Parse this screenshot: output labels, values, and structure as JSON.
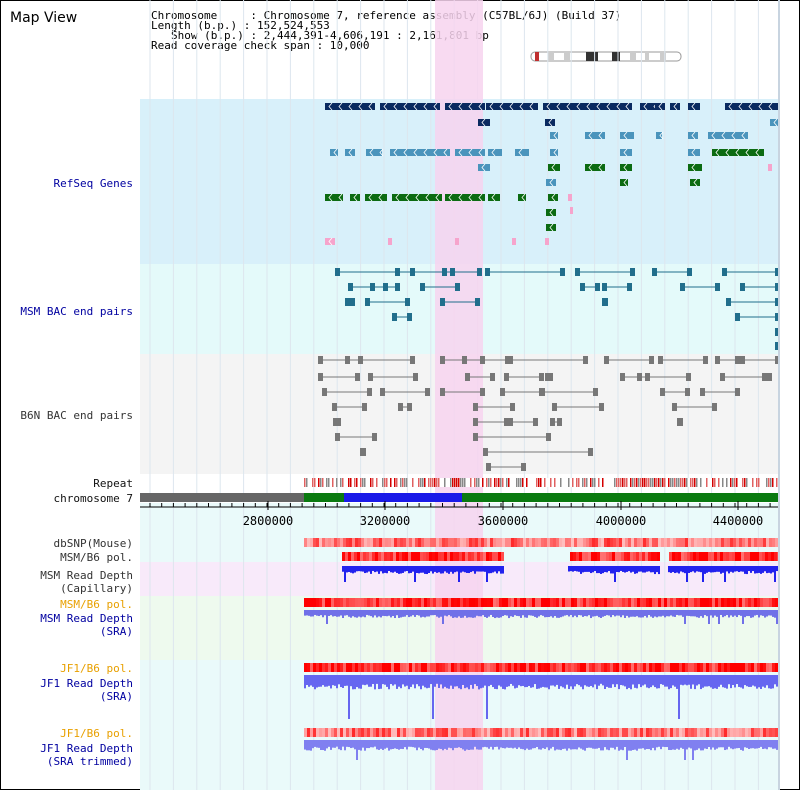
{
  "title": "Map View",
  "info": {
    "chromosome": "Chromosome     : Chromosome 7, reference assembly (C57BL/6J) (Build 37)",
    "length": "Length (b.p.) : 152,524,553",
    "show": "Show (b.p.) : 2,444,391-4,606,191 : 2,161,801 bp",
    "coverage": "Read coverage check span : 10,000"
  },
  "tracks": {
    "refseq": "RefSeq Genes",
    "msm_bac": "MSM BAC end pairs",
    "b6n_bac": "B6N BAC end pairs",
    "repeat": "Repeat",
    "chromosome": "chromosome 7",
    "dbsnp": "dbSNP(Mouse)",
    "msm_b6_pol_1": "MSM/B6 pol.",
    "msm_depth_cap_1": "MSM Read Depth",
    "msm_depth_cap_2": "(Capillary)",
    "msm_b6_pol_2": "MSM/B6 pol.",
    "msm_depth_sra_1": "MSM Read Depth",
    "msm_depth_sra_2": "(SRA)",
    "jf1_b6_pol_1": "JF1/B6 pol.",
    "jf1_depth_sra_1": "JF1 Read Depth",
    "jf1_depth_sra_2": "(SRA)",
    "jf1_b6_pol_2": "JF1/B6 pol.",
    "jf1_depth_trim_1": "JF1 Read Depth",
    "jf1_depth_trim_2": "(SRA trimmed)"
  },
  "axis": {
    "ticks": [
      "2800000",
      "3200000",
      "3600000",
      "4000000",
      "4400000"
    ],
    "range": [
      2444391,
      4606191
    ]
  },
  "colors": {
    "refseq_bg": "#d8f0fa",
    "msm_bac_bg": "#e4fafa",
    "b6n_bac_bg": "#f4f4f4",
    "highlight": "#f7d4ef",
    "gene_navy": "#0a2a60",
    "gene_steel": "#4a94bc",
    "gene_green": "#0c6b12",
    "gene_pink": "#f6a4cc",
    "bac_teal": "#216e8c",
    "bac_gray": "#777777",
    "chrom_gray": "#666666",
    "chrom_green": "#0a7a10",
    "chrom_blue": "#1a1ae8"
  }
}
